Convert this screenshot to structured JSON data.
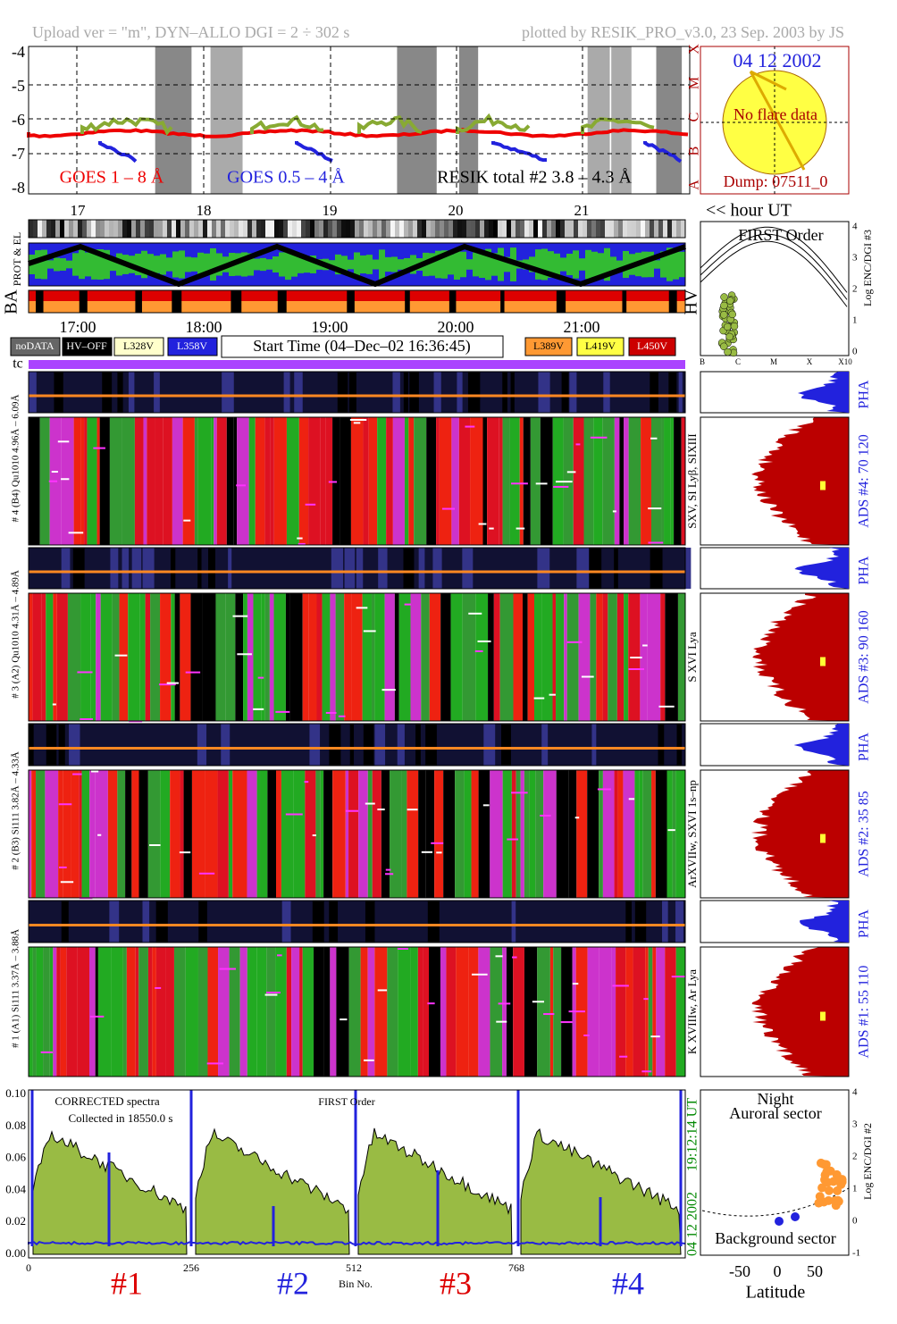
{
  "header": {
    "left": "Upload ver = \"m\", DYN–ALLO DGI =   2 ÷ 302 s",
    "right": "plotted by RESIK_PRO_v3.0, 23 Sep. 2003 by JS"
  },
  "goes": {
    "yticks": [
      "-4",
      "-5",
      "-6",
      "-7",
      "-8"
    ],
    "classes": [
      "X",
      "M",
      "C",
      "B",
      "A"
    ],
    "labels": [
      "GOES 1 – 8 Å",
      "GOES 0.5 – 4 Å",
      "RESIK total #2  3.8 – 4.3 Å"
    ],
    "days": [
      "17",
      "18",
      "19",
      "20",
      "21"
    ],
    "hour_ut": "<< hour UT"
  },
  "sun": {
    "date": "04 12 2002",
    "note": "No flare data",
    "dump": "Dump: 07511_0"
  },
  "rows": {
    "prot": "PROT & EL",
    "ba": "BA",
    "hv": "HV"
  },
  "times": [
    "17:00",
    "18:00",
    "19:00",
    "20:00",
    "21:00"
  ],
  "legend": {
    "left": [
      "noDATA",
      "HV–OFF",
      "L328V",
      "L358V"
    ],
    "start_time": "Start Time (04–Dec–02 16:36:45)",
    "right": [
      "L389V",
      "L419V",
      "L450V"
    ],
    "tc": "tc"
  },
  "first_order": {
    "title": "FIRST Order",
    "yticks": [
      "0",
      "1",
      "2",
      "3",
      "4"
    ],
    "xticks": [
      "B",
      "C",
      "M",
      "X",
      "X10"
    ],
    "ylabel": "Log ENC/DGI #3"
  },
  "detectors": [
    {
      "label": "# 4 (B4) Qu1010 4.96Å – 6.09Å",
      "lines": "SXV, SI Lyβ, SIXIII",
      "pha": "PHA",
      "ads": "ADS #4:   70 120"
    },
    {
      "label": "# 3 (A2) Qu1010 4.31Å – 4.89Å",
      "lines": "S XVI Lya",
      "pha": "PHA",
      "ads": "ADS #3:   90 160"
    },
    {
      "label": "# 2 (B3) Si111 3.82Å – 4.33Å",
      "lines": "ArXVIIw, SXVI 1s–np",
      "pha": "PHA",
      "ads": "ADS #2:   35 85"
    },
    {
      "label": "# 1 (A1) Si111 3.37Å – 3.88Å",
      "lines": "K XVIIIw, Ar Lya",
      "pha": "PHA",
      "ads": "ADS #1:   55 110"
    }
  ],
  "spectrum": {
    "title": "CORRECTED spectra",
    "collected": "Collected in 18550.0 s",
    "order": "FIRST Order",
    "yticks": [
      "0.00",
      "0.02",
      "0.04",
      "0.06",
      "0.08",
      "0.10"
    ],
    "xticks": [
      "0",
      "256",
      "512",
      "768"
    ],
    "xlabel": "Bin No.",
    "channels": [
      "#1",
      "#2",
      "#3",
      "#4"
    ],
    "date": "04 12 2002",
    "time": "19:12:14 UT"
  },
  "latitude": {
    "night": "Night",
    "auroral": "Auroral sector",
    "background": "Background sector",
    "yticks": [
      "-1",
      "0",
      "1",
      "2",
      "3",
      "4"
    ],
    "xticks": [
      "-50",
      "0",
      "50"
    ],
    "xlabel": "Latitude",
    "ylabel": "Log ENC/DGI #2"
  }
}
